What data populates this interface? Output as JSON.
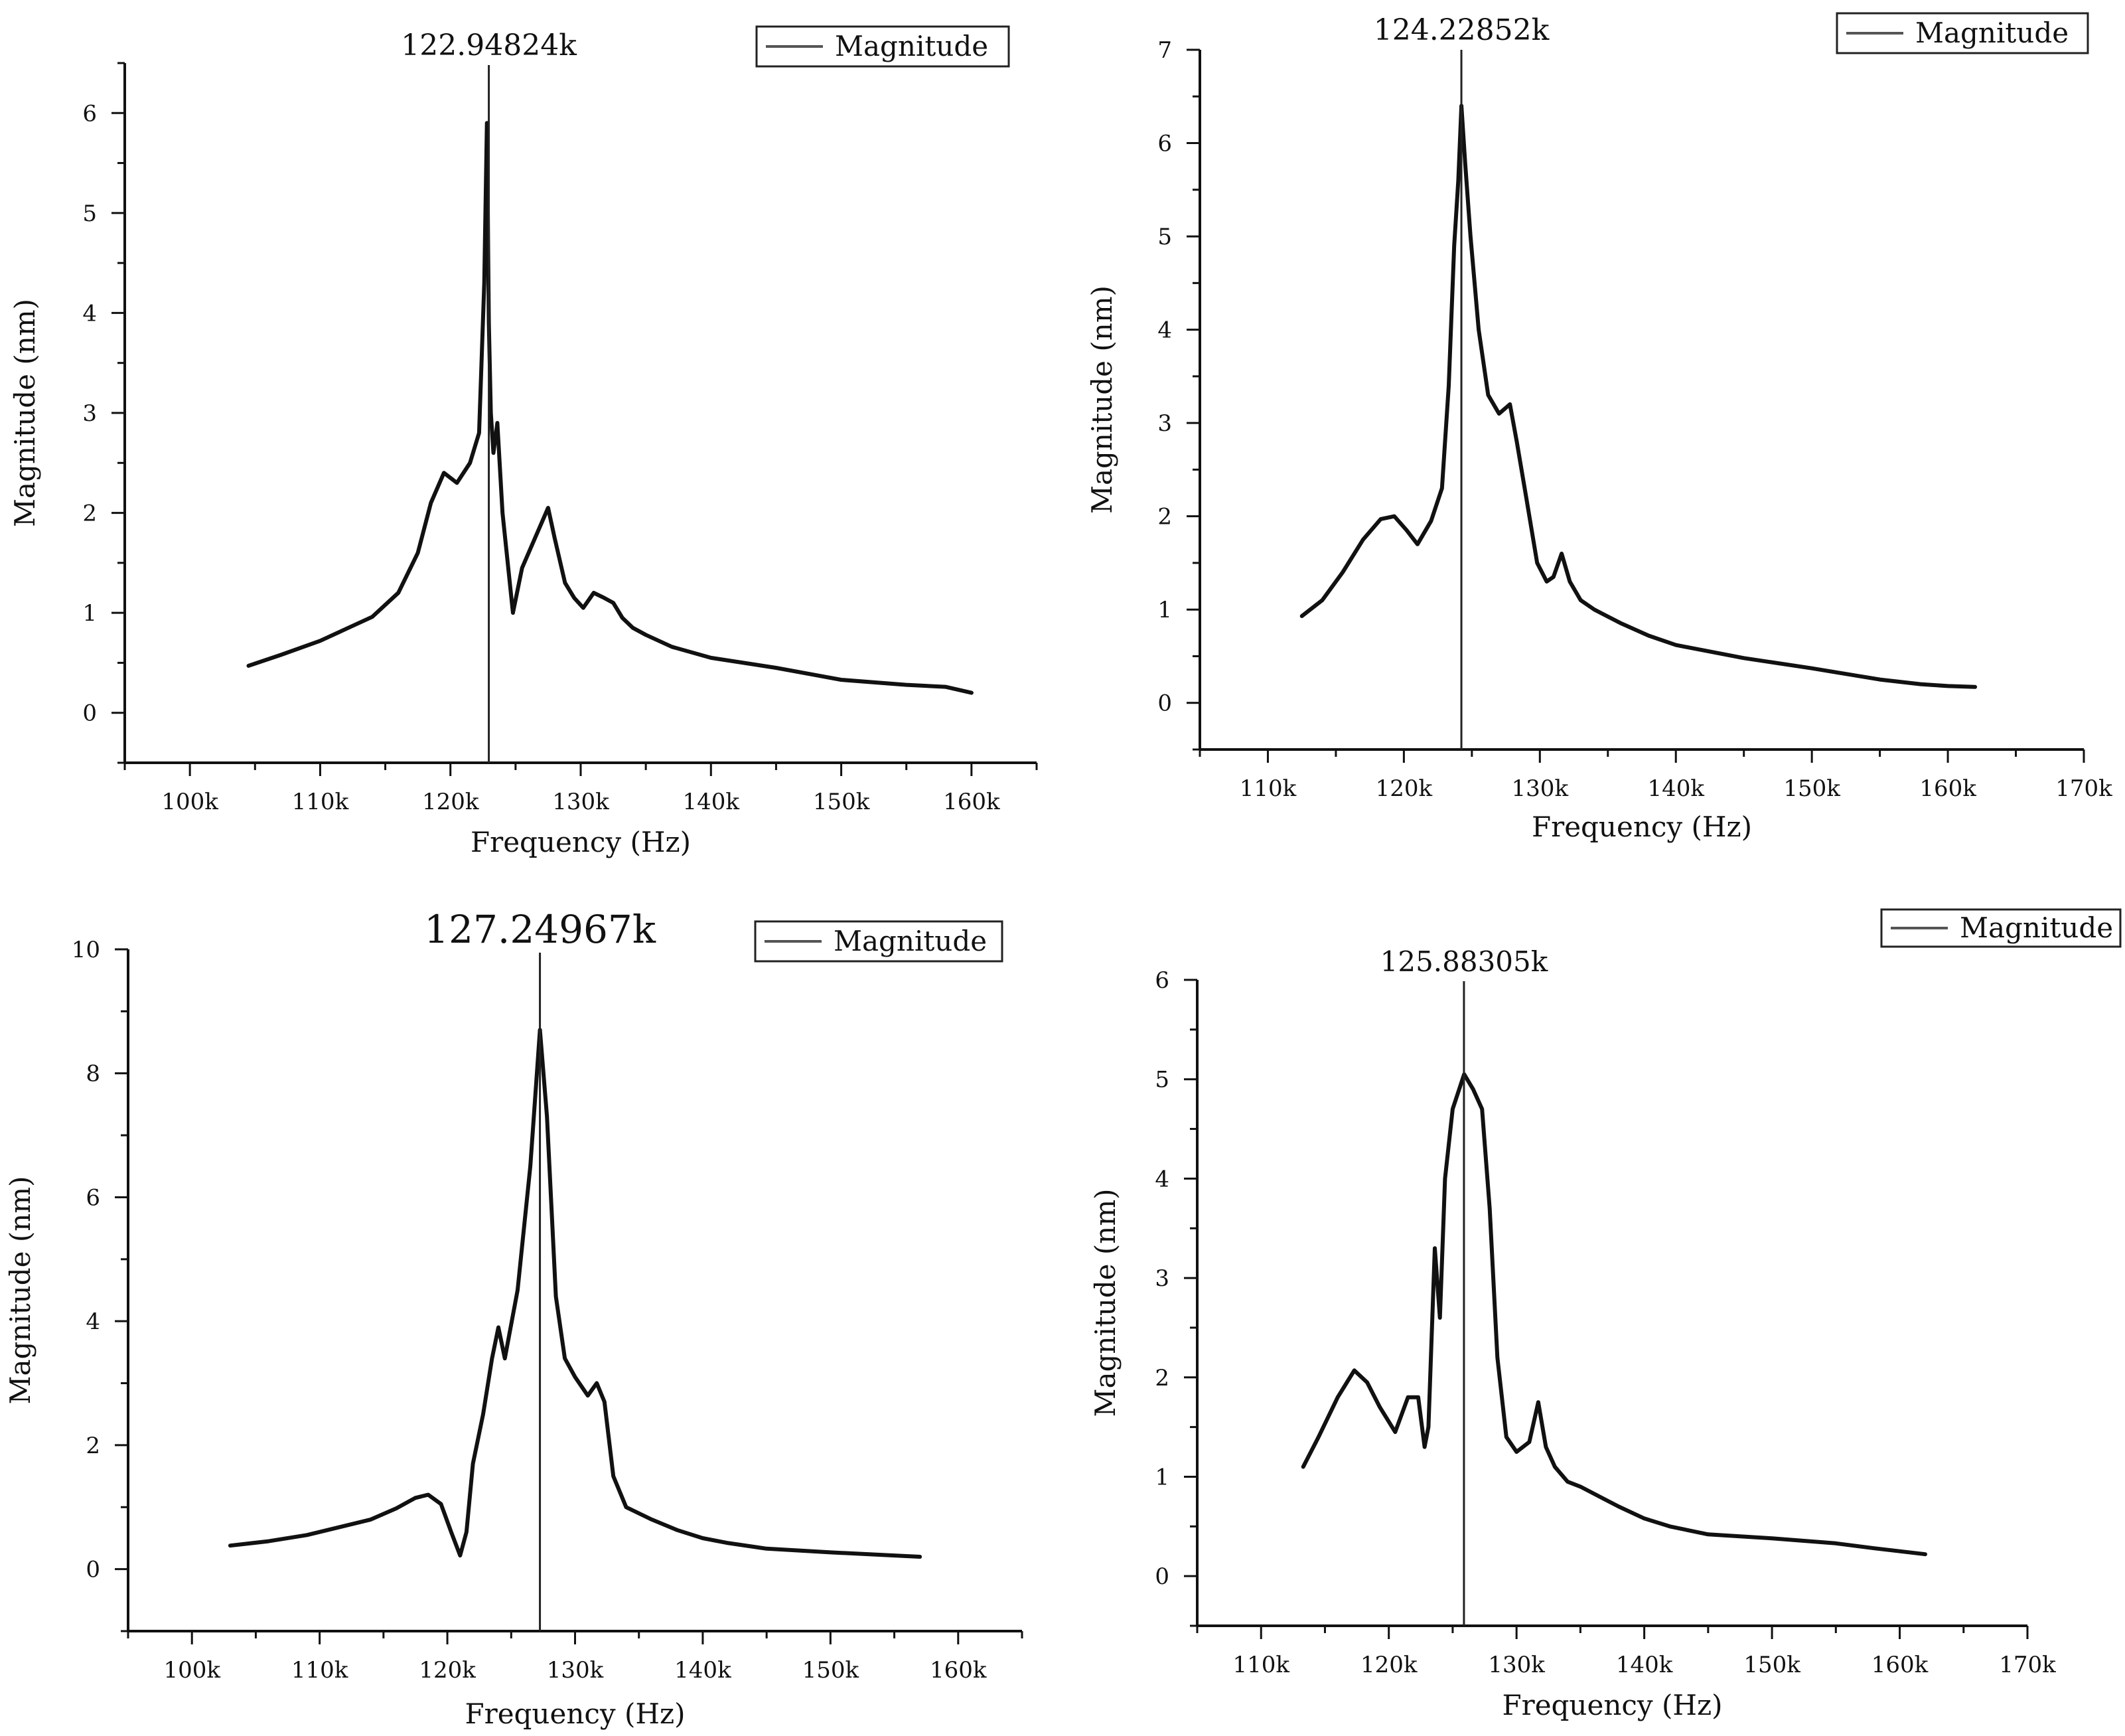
{
  "chart_data": [
    {
      "type": "line",
      "title": "",
      "xlabel": "Frequency (Hz)",
      "ylabel": "Magnitude (nm)",
      "xlim": [
        95,
        165
      ],
      "ylim": [
        -0.5,
        6.5
      ],
      "xticks": [
        100,
        110,
        120,
        130,
        140,
        150,
        160
      ],
      "xtick_labels": [
        "100k",
        "110k",
        "120k",
        "130k",
        "140k",
        "150k",
        "160k"
      ],
      "yticks": [
        0,
        1,
        2,
        3,
        4,
        5,
        6
      ],
      "ytick_labels": [
        "0",
        "1",
        "2",
        "3",
        "4",
        "5",
        "6"
      ],
      "legend": "Magnitude",
      "legend_position": "top-right",
      "peak_marker": {
        "x": 122.94824,
        "label": "122.94824k"
      },
      "series": [
        {
          "name": "Magnitude",
          "x": [
            104.5,
            107,
            110,
            112,
            114,
            116,
            117.5,
            118.5,
            119.5,
            120.5,
            121.5,
            122.2,
            122.6,
            122.8,
            122.95,
            123.1,
            123.3,
            123.6,
            124,
            124.8,
            125.5,
            126.5,
            127.5,
            128,
            128.8,
            129.5,
            130.2,
            131,
            131.8,
            132.5,
            133.2,
            134,
            135,
            137,
            140,
            145,
            150,
            155,
            158,
            160
          ],
          "values": [
            0.47,
            0.58,
            0.72,
            0.84,
            0.96,
            1.2,
            1.6,
            2.1,
            2.4,
            2.3,
            2.5,
            2.8,
            4.3,
            5.9,
            3.9,
            3.0,
            2.6,
            2.9,
            2.0,
            1.0,
            1.45,
            1.75,
            2.05,
            1.75,
            1.3,
            1.15,
            1.05,
            1.2,
            1.15,
            1.1,
            0.95,
            0.85,
            0.78,
            0.66,
            0.55,
            0.45,
            0.33,
            0.28,
            0.26,
            0.2
          ]
        }
      ]
    },
    {
      "type": "line",
      "title": "",
      "xlabel": "Frequency (Hz)",
      "ylabel": "Magnitude (nm)",
      "xlim": [
        105,
        170
      ],
      "ylim": [
        -0.5,
        7
      ],
      "xticks": [
        110,
        120,
        130,
        140,
        150,
        160,
        170
      ],
      "xtick_labels": [
        "110k",
        "120k",
        "130k",
        "140k",
        "150k",
        "160k",
        "170k"
      ],
      "yticks": [
        0,
        1,
        2,
        3,
        4,
        5,
        6,
        7
      ],
      "ytick_labels": [
        "0",
        "1",
        "2",
        "3",
        "4",
        "5",
        "6",
        "7"
      ],
      "legend": "Magnitude",
      "legend_position": "top-right",
      "peak_marker": {
        "x": 124.22852,
        "label": "124.22852k"
      },
      "series": [
        {
          "name": "Magnitude",
          "x": [
            112.5,
            114,
            115.5,
            117,
            118.3,
            119.3,
            120.2,
            121,
            122,
            122.8,
            123.3,
            123.7,
            124,
            124.23,
            124.5,
            124.9,
            125.5,
            126.2,
            127,
            127.8,
            128.3,
            129,
            129.8,
            130.5,
            131,
            131.6,
            132.2,
            133,
            134,
            136,
            138,
            140,
            145,
            150,
            155,
            158,
            160,
            162
          ],
          "values": [
            0.93,
            1.1,
            1.4,
            1.75,
            1.97,
            2.0,
            1.85,
            1.7,
            1.95,
            2.3,
            3.4,
            4.9,
            5.6,
            6.4,
            5.8,
            5.0,
            4.0,
            3.3,
            3.1,
            3.2,
            2.8,
            2.2,
            1.5,
            1.3,
            1.35,
            1.6,
            1.3,
            1.1,
            1.0,
            0.85,
            0.72,
            0.62,
            0.48,
            0.37,
            0.25,
            0.2,
            0.18,
            0.17
          ]
        }
      ]
    },
    {
      "type": "line",
      "title": "",
      "xlabel": "Frequency (Hz)",
      "ylabel": "Magnitude (nm)",
      "xlim": [
        95,
        165
      ],
      "ylim": [
        -1,
        10
      ],
      "xticks": [
        100,
        110,
        120,
        130,
        140,
        150,
        160
      ],
      "xtick_labels": [
        "100k",
        "110k",
        "120k",
        "130k",
        "140k",
        "150k",
        "160k"
      ],
      "yticks": [
        0,
        2,
        4,
        6,
        8,
        10
      ],
      "ytick_labels": [
        "0",
        "2",
        "4",
        "6",
        "8",
        "10"
      ],
      "legend": "Magnitude",
      "legend_position": "top-right",
      "peak_marker": {
        "x": 127.24967,
        "label": "127.24967k"
      },
      "series": [
        {
          "name": "Magnitude",
          "x": [
            103,
            106,
            109,
            112,
            114,
            116,
            117.5,
            118.5,
            119.5,
            120.3,
            121,
            121.5,
            122,
            122.8,
            123.5,
            124,
            124.5,
            125.5,
            126.5,
            127.25,
            127.8,
            128.5,
            129.2,
            130,
            131,
            131.7,
            132.3,
            133,
            134,
            136,
            138,
            140,
            142,
            145,
            150,
            155,
            157
          ],
          "values": [
            0.38,
            0.45,
            0.55,
            0.7,
            0.8,
            0.98,
            1.15,
            1.2,
            1.05,
            0.6,
            0.22,
            0.6,
            1.7,
            2.5,
            3.4,
            3.9,
            3.4,
            4.5,
            6.5,
            8.7,
            7.3,
            4.4,
            3.4,
            3.1,
            2.8,
            3.0,
            2.7,
            1.5,
            1.0,
            0.8,
            0.63,
            0.5,
            0.42,
            0.33,
            0.27,
            0.22,
            0.2
          ]
        }
      ]
    },
    {
      "type": "line",
      "title": "",
      "xlabel": "Frequency (Hz)",
      "ylabel": "Magnitude (nm)",
      "xlim": [
        105,
        170
      ],
      "ylim": [
        -0.5,
        6
      ],
      "xticks": [
        110,
        120,
        130,
        140,
        150,
        160,
        170
      ],
      "xtick_labels": [
        "110k",
        "120k",
        "130k",
        "140k",
        "150k",
        "160k",
        "170k"
      ],
      "yticks": [
        0,
        1,
        2,
        3,
        4,
        5,
        6
      ],
      "ytick_labels": [
        "0",
        "1",
        "2",
        "3",
        "4",
        "5",
        "6"
      ],
      "legend": "Magnitude",
      "legend_position": "top-right",
      "peak_marker": {
        "x": 125.88305,
        "label": "125.88305k"
      },
      "series": [
        {
          "name": "Magnitude",
          "x": [
            113.3,
            114.5,
            116,
            117.3,
            118.3,
            119.3,
            120.5,
            121.5,
            122.3,
            122.8,
            123.1,
            123.6,
            124,
            124.4,
            125,
            125.9,
            126.6,
            127.3,
            127.9,
            128.5,
            129.2,
            130,
            131,
            131.7,
            132.3,
            133,
            134,
            135,
            138,
            140,
            142,
            145,
            150,
            155,
            158,
            160,
            162
          ],
          "values": [
            1.1,
            1.4,
            1.8,
            2.07,
            1.95,
            1.7,
            1.45,
            1.8,
            1.8,
            1.3,
            1.5,
            3.3,
            2.6,
            4.0,
            4.7,
            5.05,
            4.9,
            4.7,
            3.7,
            2.2,
            1.4,
            1.25,
            1.35,
            1.75,
            1.3,
            1.1,
            0.95,
            0.9,
            0.7,
            0.58,
            0.5,
            0.42,
            0.38,
            0.33,
            0.28,
            0.25,
            0.22
          ]
        }
      ]
    }
  ]
}
